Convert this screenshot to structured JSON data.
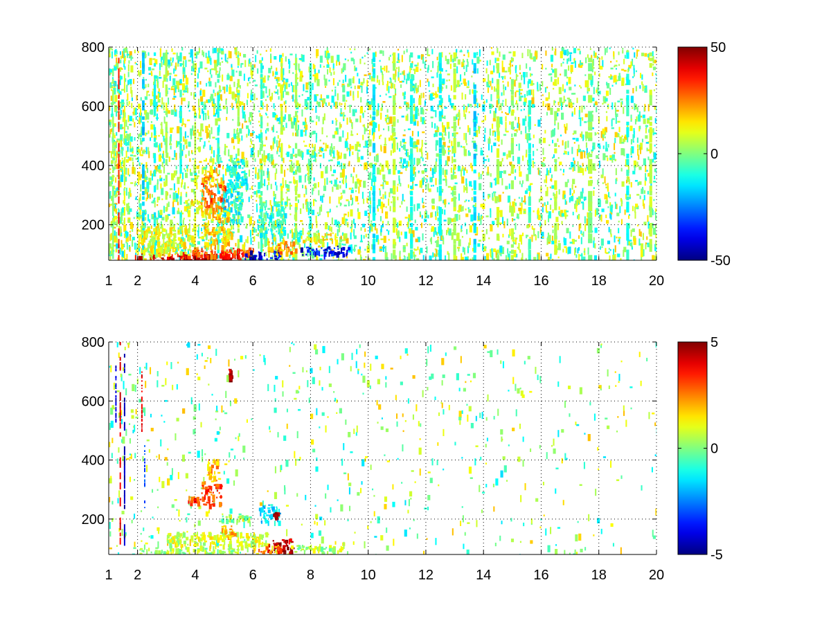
{
  "chart_data": [
    {
      "type": "heatmap",
      "xlim": [
        1,
        20
      ],
      "ylim": [
        80,
        800
      ],
      "x_ticks": [
        1,
        2,
        4,
        6,
        8,
        10,
        12,
        14,
        16,
        18,
        20
      ],
      "x_tick_labels": [
        "1",
        "2",
        "4",
        "6",
        "8",
        "10",
        "12",
        "14",
        "16",
        "18",
        "20"
      ],
      "y_ticks": [
        200,
        400,
        600,
        800
      ],
      "y_tick_labels": [
        "200",
        "400",
        "600",
        "800"
      ],
      "grid": true,
      "colormap": "jet",
      "colorbar": {
        "clim": [
          -50,
          50
        ],
        "ticks": [
          -50,
          0,
          50
        ],
        "tick_labels": [
          "-50",
          "0",
          "50"
        ]
      },
      "columns": [
        {
          "x": 1.15,
          "w": 0.06,
          "y": [
            80,
            800
          ],
          "value": 2
        },
        {
          "x": 1.35,
          "w": 0.05,
          "y": [
            80,
            800
          ],
          "value": 35
        },
        {
          "x": 1.55,
          "w": 0.05,
          "y": [
            80,
            800
          ],
          "value": 10
        },
        {
          "x": 2.2,
          "w": 0.09,
          "y": [
            80,
            800
          ],
          "value": -18
        },
        {
          "x": 2.6,
          "w": 0.08,
          "y": [
            80,
            800
          ],
          "value": -12
        },
        {
          "x": 3.0,
          "w": 0.08,
          "y": [
            80,
            800
          ],
          "value": 4
        },
        {
          "x": 3.5,
          "w": 0.08,
          "y": [
            80,
            800
          ],
          "value": -10
        },
        {
          "x": 4.0,
          "w": 0.06,
          "y": [
            80,
            800
          ],
          "value": 8
        },
        {
          "x": 4.8,
          "w": 0.08,
          "y": [
            80,
            800
          ],
          "value": -8
        },
        {
          "x": 5.5,
          "w": 0.08,
          "y": [
            80,
            800
          ],
          "value": 6
        },
        {
          "x": 6.3,
          "w": 0.08,
          "y": [
            80,
            800
          ],
          "value": -6
        },
        {
          "x": 7.0,
          "w": 0.08,
          "y": [
            80,
            800
          ],
          "value": 8
        },
        {
          "x": 7.5,
          "w": 0.08,
          "y": [
            80,
            800
          ],
          "value": 4
        },
        {
          "x": 8.0,
          "w": 0.08,
          "y": [
            80,
            800
          ],
          "value": -6
        },
        {
          "x": 10.2,
          "w": 0.1,
          "y": [
            80,
            800
          ],
          "value": -14
        },
        {
          "x": 10.9,
          "w": 0.1,
          "y": [
            80,
            800
          ],
          "value": 6
        },
        {
          "x": 11.5,
          "w": 0.1,
          "y": [
            80,
            800
          ],
          "value": -10
        },
        {
          "x": 12.5,
          "w": 0.1,
          "y": [
            80,
            800
          ],
          "value": -12
        },
        {
          "x": 13.0,
          "w": 0.1,
          "y": [
            80,
            800
          ],
          "value": 6
        },
        {
          "x": 13.7,
          "w": 0.1,
          "y": [
            80,
            800
          ],
          "value": -16
        },
        {
          "x": 14.5,
          "w": 0.1,
          "y": [
            80,
            800
          ],
          "value": 6
        },
        {
          "x": 15.0,
          "w": 0.1,
          "y": [
            80,
            800
          ],
          "value": 4
        },
        {
          "x": 15.6,
          "w": 0.1,
          "y": [
            80,
            800
          ],
          "value": -8
        },
        {
          "x": 16.5,
          "w": 0.1,
          "y": [
            80,
            800
          ],
          "value": 6
        },
        {
          "x": 17.7,
          "w": 0.15,
          "y": [
            80,
            800
          ],
          "value": 2
        },
        {
          "x": 19.0,
          "w": 0.1,
          "y": [
            80,
            800
          ],
          "value": -10
        },
        {
          "x": 19.8,
          "w": 0.1,
          "y": [
            80,
            800
          ],
          "value": 6
        }
      ],
      "blobs": [
        {
          "x": [
            1.9,
            5.6
          ],
          "y": [
            80,
            105
          ],
          "value": 40
        },
        {
          "x": [
            3.5,
            6.0
          ],
          "y": [
            95,
            125
          ],
          "value": 30
        },
        {
          "x": [
            5.7,
            6.9
          ],
          "y": [
            80,
            115
          ],
          "value": -40
        },
        {
          "x": [
            6.5,
            7.5
          ],
          "y": [
            105,
            145
          ],
          "value": 22
        },
        {
          "x": [
            7.6,
            9.3
          ],
          "y": [
            100,
            130
          ],
          "value": -38
        },
        {
          "x": [
            7.6,
            9.3
          ],
          "y": [
            150,
            175
          ],
          "value": 12
        },
        {
          "x": [
            4.2,
            5.0
          ],
          "y": [
            260,
            350
          ],
          "value": 30
        },
        {
          "x": [
            4.3,
            4.8
          ],
          "y": [
            350,
            410
          ],
          "value": 20
        },
        {
          "x": [
            3.6,
            4.2
          ],
          "y": [
            260,
            290
          ],
          "value": 15
        },
        {
          "x": [
            4.9,
            5.6
          ],
          "y": [
            200,
            320
          ],
          "value": -12
        },
        {
          "x": [
            5.1,
            5.8
          ],
          "y": [
            320,
            430
          ],
          "value": -10
        },
        {
          "x": [
            2.0,
            3.8
          ],
          "y": [
            100,
            200
          ],
          "value": 10
        },
        {
          "x": [
            6.1,
            7.1
          ],
          "y": [
            160,
            280
          ],
          "value": -8
        },
        {
          "x": [
            4.2,
            5.2
          ],
          "y": [
            130,
            260
          ],
          "value": 16
        }
      ],
      "seed": 11,
      "density": 0.1
    },
    {
      "type": "heatmap",
      "xlim": [
        1,
        20
      ],
      "ylim": [
        80,
        800
      ],
      "x_ticks": [
        1,
        2,
        4,
        6,
        8,
        10,
        12,
        14,
        16,
        18,
        20
      ],
      "x_tick_labels": [
        "1",
        "2",
        "4",
        "6",
        "8",
        "10",
        "12",
        "14",
        "16",
        "18",
        "20"
      ],
      "y_ticks": [
        200,
        400,
        600,
        800
      ],
      "y_tick_labels": [
        "200",
        "400",
        "600",
        "800"
      ],
      "grid": true,
      "colormap": "jet",
      "colorbar": {
        "clim": [
          -5,
          5
        ],
        "ticks": [
          -5,
          0,
          5
        ],
        "tick_labels": [
          "-5",
          "0",
          "5"
        ]
      },
      "columns": [
        {
          "x": 1.25,
          "w": 0.03,
          "y": [
            520,
            720
          ],
          "value": -4
        },
        {
          "x": 1.4,
          "w": 0.03,
          "y": [
            120,
            800
          ],
          "value": 4
        },
        {
          "x": 1.55,
          "w": 0.03,
          "y": [
            100,
            760
          ],
          "value": -4.5
        },
        {
          "x": 2.15,
          "w": 0.04,
          "y": [
            500,
            700
          ],
          "value": 4
        },
        {
          "x": 2.25,
          "w": 0.03,
          "y": [
            230,
            450
          ],
          "value": -3
        }
      ],
      "blobs": [
        {
          "x": [
            2.0,
            5.5
          ],
          "y": [
            80,
            105
          ],
          "value": 0.3
        },
        {
          "x": [
            3.0,
            6.5
          ],
          "y": [
            105,
            160
          ],
          "value": 0.8
        },
        {
          "x": [
            6.5,
            7.4
          ],
          "y": [
            90,
            140
          ],
          "value": 4.5
        },
        {
          "x": [
            6.0,
            7.0
          ],
          "y": [
            90,
            115
          ],
          "value": 2.5
        },
        {
          "x": [
            7.3,
            9.3
          ],
          "y": [
            90,
            115
          ],
          "value": 0.5
        },
        {
          "x": [
            4.2,
            4.9
          ],
          "y": [
            250,
            330
          ],
          "value": 3
        },
        {
          "x": [
            4.4,
            4.8
          ],
          "y": [
            330,
            410
          ],
          "value": 2
        },
        {
          "x": [
            3.7,
            4.2
          ],
          "y": [
            260,
            280
          ],
          "value": 3
        },
        {
          "x": [
            4.8,
            5.9
          ],
          "y": [
            190,
            220
          ],
          "value": 0
        },
        {
          "x": [
            6.2,
            6.9
          ],
          "y": [
            190,
            250
          ],
          "value": -1.5
        },
        {
          "x": [
            6.7,
            6.85
          ],
          "y": [
            205,
            225
          ],
          "value": 5
        },
        {
          "x": [
            5.15,
            5.25
          ],
          "y": [
            680,
            710
          ],
          "value": 4.5
        },
        {
          "x": [
            4.9,
            5.4
          ],
          "y": [
            140,
            180
          ],
          "value": 2
        }
      ],
      "seed": 23,
      "density": 0.015
    }
  ]
}
